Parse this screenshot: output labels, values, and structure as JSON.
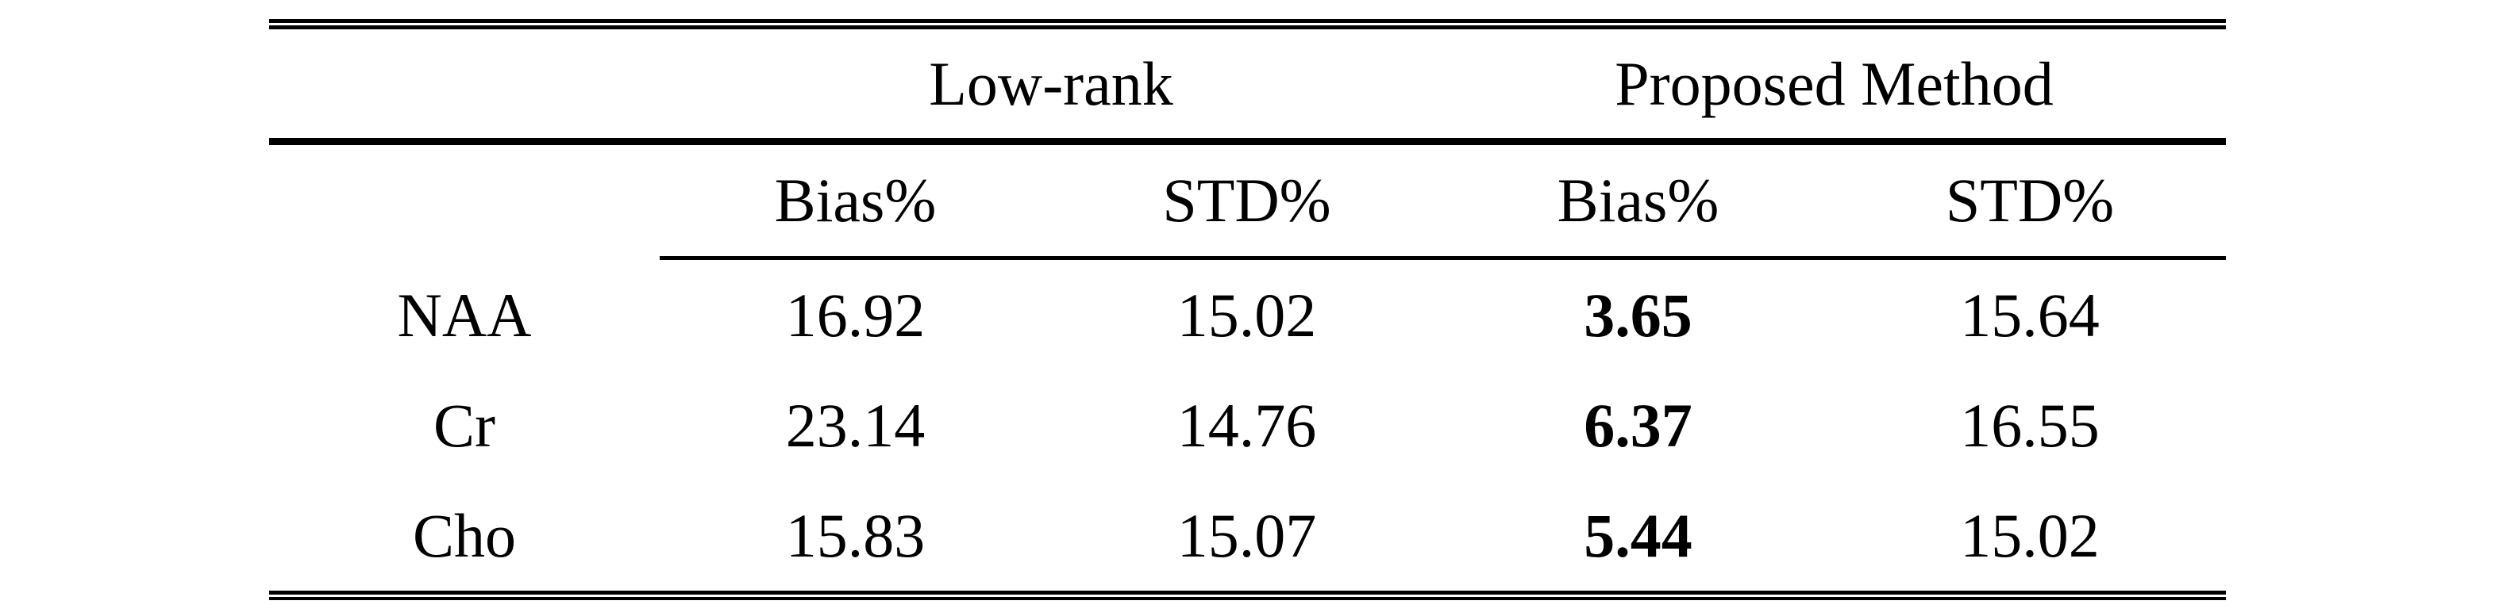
{
  "page": {
    "background_color": "#ffffff",
    "text_color": "#000000",
    "rule_color": "#000000"
  },
  "table": {
    "column_groups": [
      {
        "label": "Low-rank"
      },
      {
        "label": "Proposed Method"
      }
    ],
    "sub_headers": [
      "Bias%",
      "STD%",
      "Bias%",
      "STD%"
    ],
    "rows": [
      {
        "label": "NAA",
        "values": [
          "16.92",
          "15.02",
          "3.65",
          "15.64"
        ]
      },
      {
        "label": "Cr",
        "values": [
          "23.14",
          "14.76",
          "6.37",
          "16.55"
        ]
      },
      {
        "label": "Cho",
        "values": [
          "15.83",
          "15.07",
          "5.44",
          "15.02"
        ]
      }
    ],
    "bold_value_column_index": 2
  },
  "chart_data": {
    "type": "table",
    "columns": [
      "",
      "Low-rank Bias%",
      "Low-rank STD%",
      "Proposed Method Bias%",
      "Proposed Method STD%"
    ],
    "rows": [
      [
        "NAA",
        16.92,
        15.02,
        3.65,
        15.64
      ],
      [
        "Cr",
        23.14,
        14.76,
        6.37,
        16.55
      ],
      [
        "Cho",
        15.83,
        15.07,
        5.44,
        15.02
      ]
    ],
    "bold_cells": "Proposed Method Bias% column values"
  }
}
